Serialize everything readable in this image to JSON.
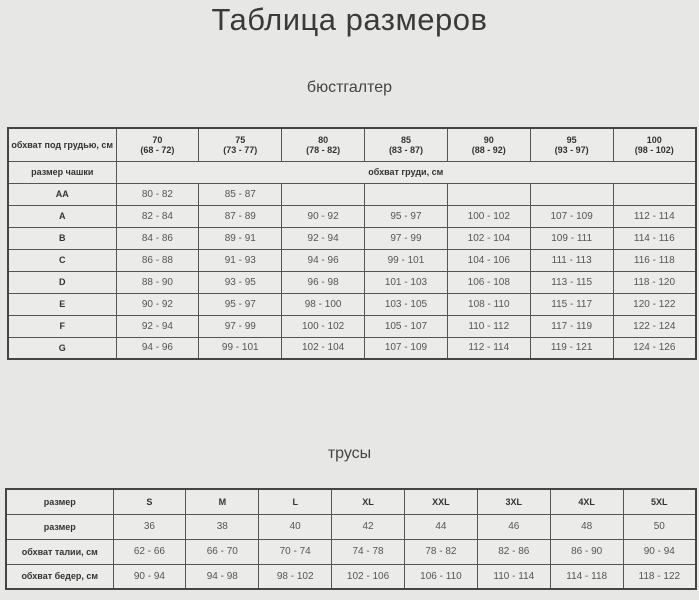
{
  "title": "Таблица размеров",
  "bra": {
    "section_title": "бюстгалтер",
    "corner_label": "обхват под грудью, см",
    "band_sizes": [
      {
        "size": "70",
        "range": "(68 - 72)"
      },
      {
        "size": "75",
        "range": "(73 - 77)"
      },
      {
        "size": "80",
        "range": "(78 - 82)"
      },
      {
        "size": "85",
        "range": "(83 - 87)"
      },
      {
        "size": "90",
        "range": "(88 - 92)"
      },
      {
        "size": "95",
        "range": "(93 - 97)"
      },
      {
        "size": "100",
        "range": "(98 - 102)"
      }
    ],
    "cup_label": "размер чашки",
    "bust_label": "обхват груди, см",
    "rows": [
      {
        "cup": "AA",
        "values": [
          "80 - 82",
          "85 - 87",
          "",
          "",
          "",
          "",
          ""
        ]
      },
      {
        "cup": "A",
        "values": [
          "82 - 84",
          "87 - 89",
          "90 - 92",
          "95 - 97",
          "100 - 102",
          "107 - 109",
          "112 - 114"
        ]
      },
      {
        "cup": "B",
        "values": [
          "84 - 86",
          "89 - 91",
          "92 - 94",
          "97 - 99",
          "102 - 104",
          "109 - 111",
          "114 - 116"
        ]
      },
      {
        "cup": "C",
        "values": [
          "86 - 88",
          "91 - 93",
          "94 - 96",
          "99 - 101",
          "104 - 106",
          "111 - 113",
          "116 - 118"
        ]
      },
      {
        "cup": "D",
        "values": [
          "88 - 90",
          "93 - 95",
          "96 - 98",
          "101 - 103",
          "106 - 108",
          "113 - 115",
          "118 - 120"
        ]
      },
      {
        "cup": "E",
        "values": [
          "90 - 92",
          "95 - 97",
          "98 - 100",
          "103 - 105",
          "108 - 110",
          "115 - 117",
          "120 - 122"
        ]
      },
      {
        "cup": "F",
        "values": [
          "92 - 94",
          "97 - 99",
          "100 - 102",
          "105 - 107",
          "110 - 112",
          "117 - 119",
          "122 - 124"
        ]
      },
      {
        "cup": "G",
        "values": [
          "94 - 96",
          "99 - 101",
          "102 - 104",
          "107 - 109",
          "112 - 114",
          "119 - 121",
          "124 - 126"
        ]
      }
    ]
  },
  "pants": {
    "section_title": "трусы",
    "rows": [
      {
        "label": "размер",
        "values": [
          "S",
          "M",
          "L",
          "XL",
          "XXL",
          "3XL",
          "4XL",
          "5XL"
        ],
        "bold": true
      },
      {
        "label": "размер",
        "values": [
          "36",
          "38",
          "40",
          "42",
          "44",
          "46",
          "48",
          "50"
        ]
      },
      {
        "label": "обхват талии, см",
        "values": [
          "62 - 66",
          "66 - 70",
          "70 - 74",
          "74 - 78",
          "78 - 82",
          "82 - 86",
          "86 - 90",
          "90 - 94"
        ]
      },
      {
        "label": "обхват бедер, см",
        "values": [
          "90 - 94",
          "94 - 98",
          "98 - 102",
          "102 - 106",
          "106 - 110",
          "110 - 114",
          "114 - 118",
          "118 - 122"
        ]
      }
    ]
  }
}
